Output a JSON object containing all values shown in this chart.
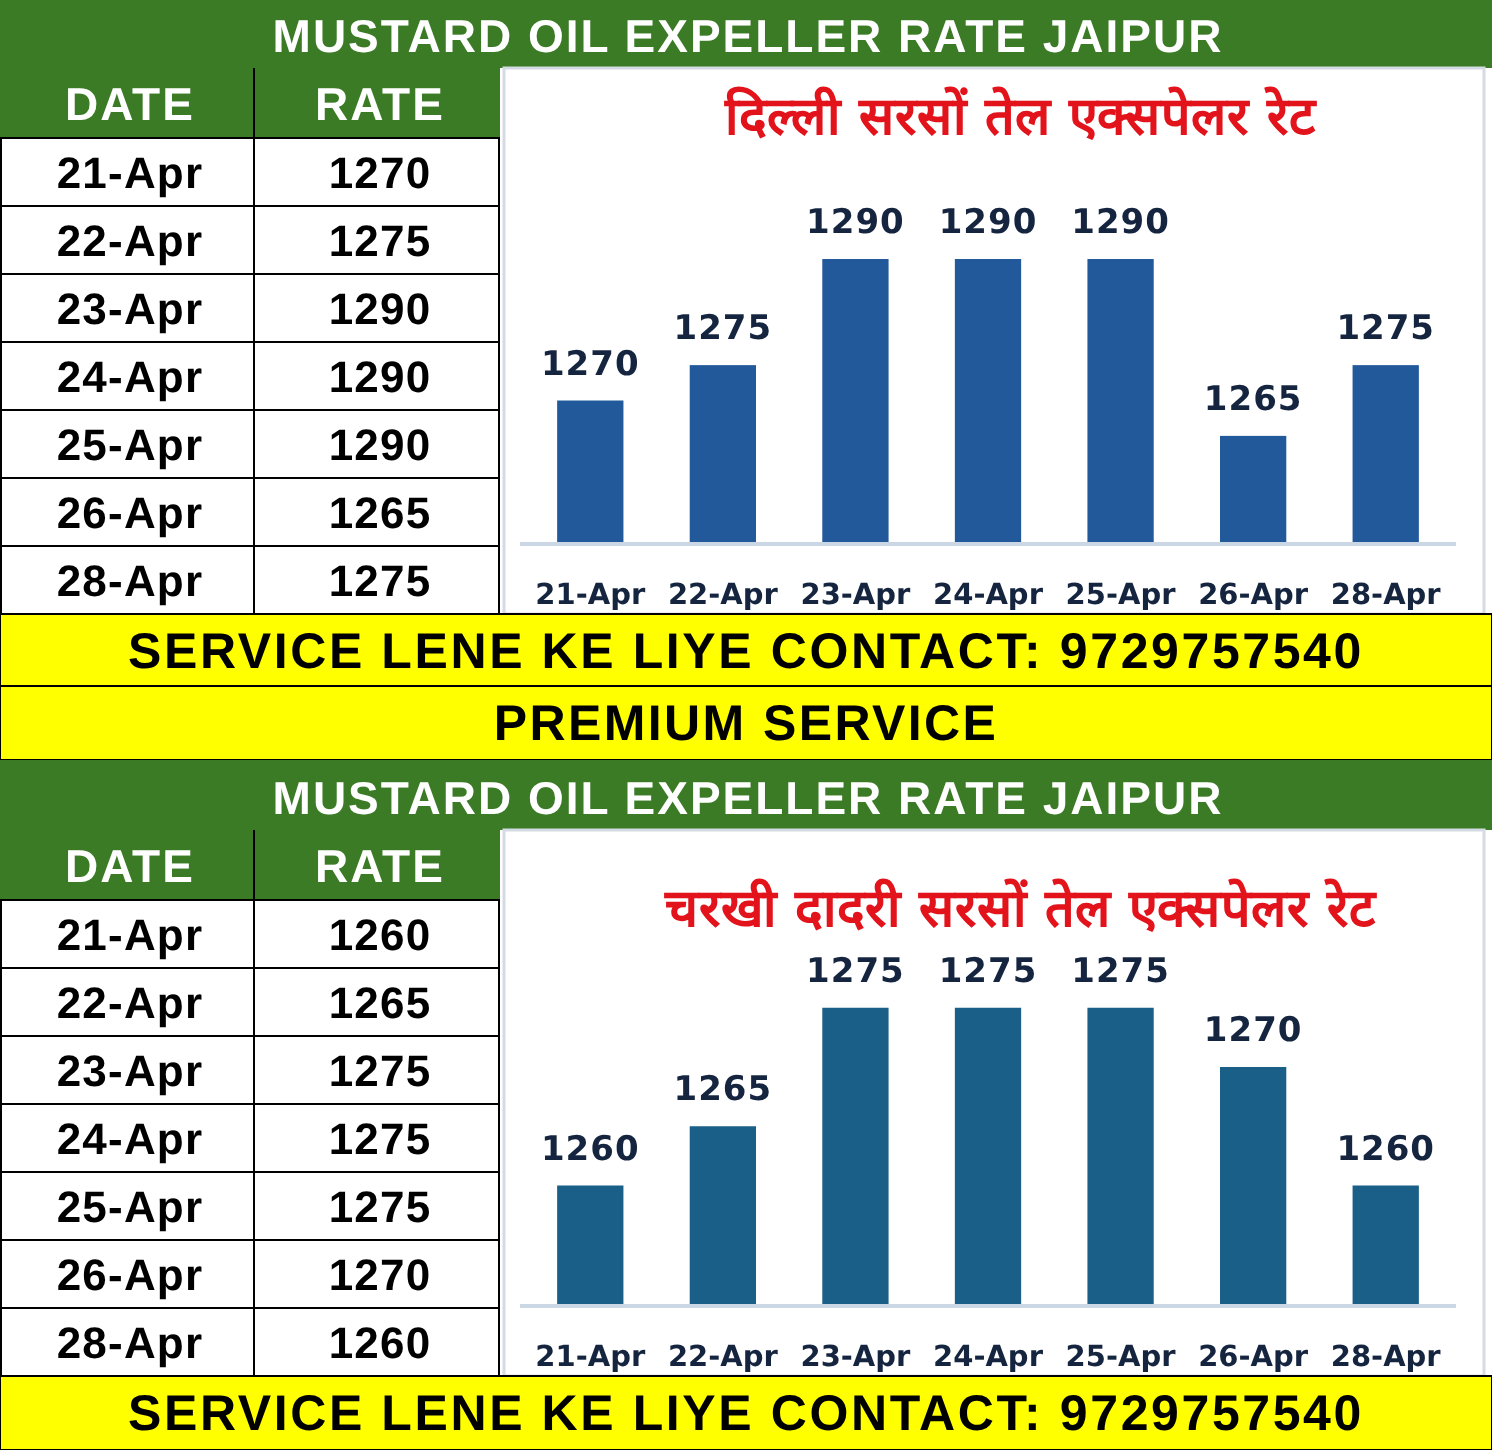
{
  "chart_data": [
    {
      "type": "other",
      "annotations": [
        "DATE",
        "RATE",
        "21-Apr",
        "1270",
        "22-Apr",
        "1275",
        "23-Apr",
        "1290",
        "24-Apr",
        "1290",
        "25-Apr",
        "1290",
        "26-Apr",
        "1265",
        "28-Apr",
        "1275"
      ]
    },
    {
      "type": "bar",
      "title": "MUSTARD OIL EXPELLER RATE JAIPUR",
      "subtitle": "दिल्ली सरसों तेल एक्सपेलर रेट",
      "categories": [
        "21-Apr",
        "22-Apr",
        "23-Apr",
        "24-Apr",
        "25-Apr",
        "26-Apr",
        "28-Apr"
      ],
      "values": [
        1270,
        1275,
        1290,
        1290,
        1290,
        1265,
        1275
      ],
      "color": "#22599a",
      "ylim": [
        1250,
        1317
      ],
      "tick_labels": "x",
      "data_labels": true,
      "annotations": [
        "SERVICE LENE KE LIYE CONTACT: 9729757540"
      ]
    },
    {
      "type": "other",
      "annotations": [
        "DATE",
        "RATE",
        "21-Apr",
        "1260",
        "22-Apr",
        "1265",
        "23-Apr",
        "1275",
        "24-Apr",
        "1275",
        "25-Apr",
        "1275",
        "26-Apr",
        "1270",
        "28-Apr",
        "1260"
      ]
    },
    {
      "type": "bar",
      "title": "MUSTARD OIL EXPELLER RATE JAIPUR",
      "subtitle": "चरखी दादरी सरसों तेल एक्सपेलर रेट",
      "categories": [
        "21-Apr",
        "22-Apr",
        "23-Apr",
        "24-Apr",
        "25-Apr",
        "26-Apr",
        "28-Apr"
      ],
      "values": [
        1260,
        1265,
        1275,
        1275,
        1275,
        1270,
        1260
      ],
      "color": "#1a5f87",
      "ylim": [
        1250,
        1290
      ],
      "tick_labels": "x",
      "data_labels": true,
      "annotations": [
        "PREMIUM SERVICE",
        "SERVICE LENE KE LIYE CONTACT: 9729757540"
      ]
    }
  ]
}
